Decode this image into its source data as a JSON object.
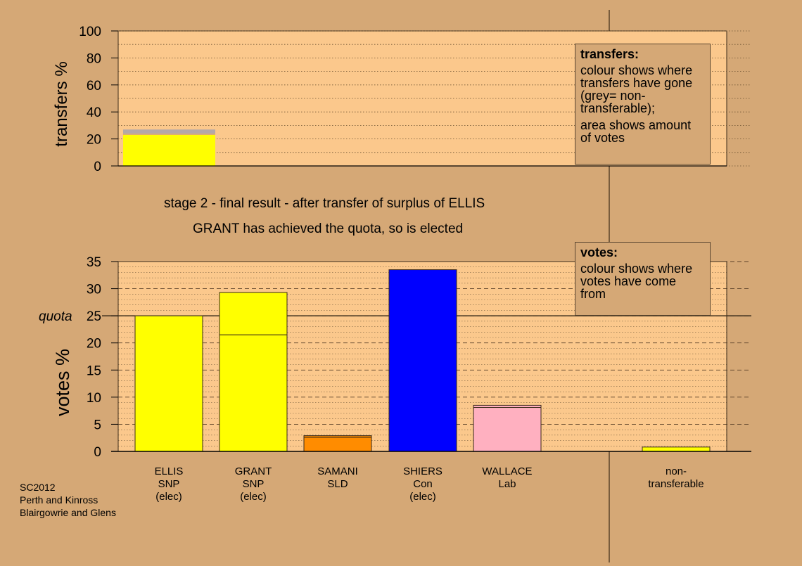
{
  "captions": {
    "stage": "stage 2 - final result - after transfer of surplus of ELLIS",
    "result": "GRANT has achieved the quota, so is elected"
  },
  "footer": [
    "SC2012",
    "Perth and Kinross",
    "Blairgowrie and Glens"
  ],
  "colors": {
    "background": "#d5a876",
    "plot": "#fbc88c",
    "snp": "#ffff00",
    "sld": "#ff8c00",
    "con": "#0000ff",
    "lab": "#ffb0c0",
    "nontransferable_grey": "#b4a8a8"
  },
  "legend_transfers": {
    "title": "transfers:",
    "lines": [
      "colour shows where transfers have gone (grey= non-transferable);",
      "area shows amount of votes"
    ]
  },
  "legend_votes": {
    "title": "votes:",
    "lines": [
      "colour shows where votes have come from"
    ]
  },
  "chart_data": [
    {
      "type": "bar",
      "ylabel": "transfers %",
      "ylim": [
        0,
        100
      ],
      "yticks": [
        0,
        20,
        40,
        60,
        80,
        100
      ],
      "grid": "dotted",
      "series": [
        {
          "category": "ELLIS",
          "segments": [
            {
              "value": 23,
              "color": "#ffff00"
            },
            {
              "value": 1,
              "color": "#d5a876"
            },
            {
              "value": 3,
              "color": "#b4a8a8"
            }
          ]
        }
      ]
    },
    {
      "type": "bar",
      "ylabel": "votes %",
      "ylim": [
        0,
        35
      ],
      "yticks": [
        0,
        5,
        10,
        15,
        20,
        25,
        30,
        35
      ],
      "quota": 25,
      "quota_label": "quota",
      "grid": "dashed",
      "categories": [
        {
          "label": "ELLIS",
          "party": "SNP",
          "note": "(elec)"
        },
        {
          "label": "GRANT",
          "party": "SNP",
          "note": "(elec)"
        },
        {
          "label": "SAMANI",
          "party": "SLD",
          "note": ""
        },
        {
          "label": "SHIERS",
          "party": "Con",
          "note": "(elec)"
        },
        {
          "label": "WALLACE",
          "party": "Lab",
          "note": ""
        },
        {
          "label": "non-",
          "party": "transferable",
          "note": ""
        }
      ],
      "stacks": [
        [
          {
            "value": 25.0,
            "color": "#ffff00"
          }
        ],
        [
          {
            "value": 21.5,
            "color": "#ffff00"
          },
          {
            "value": 7.8,
            "color": "#ffff00"
          }
        ],
        [
          {
            "value": 2.6,
            "color": "#ff8c00"
          },
          {
            "value": 0.3,
            "color": "#ff8c00"
          }
        ],
        [
          {
            "value": 33.5,
            "color": "#0000ff"
          }
        ],
        [
          {
            "value": 8.1,
            "color": "#ffb0c0"
          },
          {
            "value": 0.4,
            "color": "#ffb0c0"
          }
        ],
        [
          {
            "value": 0.8,
            "color": "#ffff00"
          }
        ]
      ]
    }
  ]
}
